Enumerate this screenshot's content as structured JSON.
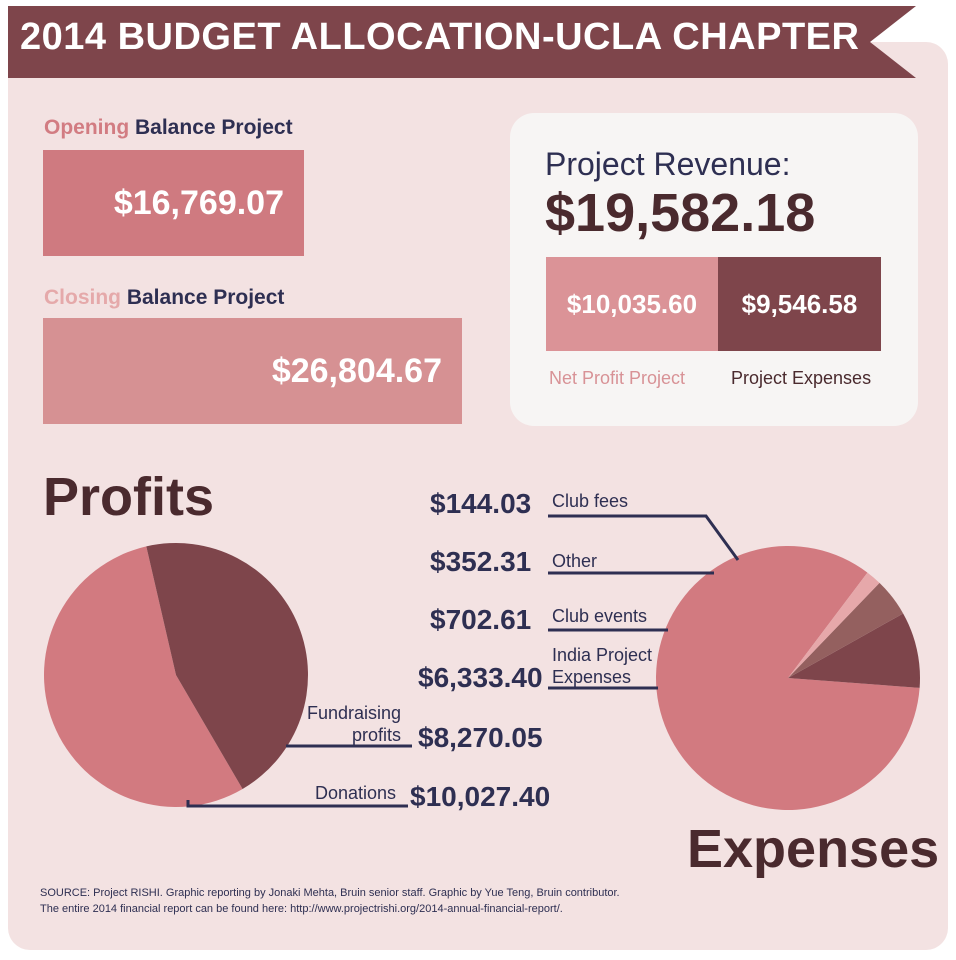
{
  "title": "2014 BUDGET ALLOCATION-UCLA CHAPTER",
  "colors": {
    "banner": "#7e454b",
    "panel": "#f3e2e2",
    "opening_box": "#cf7a80",
    "closing_box": "#d69193",
    "net_profit": "#db9397",
    "expenses_dark": "#7e454b",
    "navy": "#2e2f52",
    "dark_brown": "#4a2a2e",
    "pie_light": "#d27a80",
    "pie_dark": "#7e454b",
    "pie_mid": "#94605f",
    "pie_pale": "#e6a8aa"
  },
  "opening": {
    "label_accent": "Opening",
    "label_rest": " Balance Project",
    "value": "$16,769.07"
  },
  "closing": {
    "label_accent": "Closing",
    "label_rest": " Balance Project",
    "value": "$26,804.67"
  },
  "revenue": {
    "label": "Project Revenue:",
    "value": "$19,582.18",
    "net_profit_value": "$10,035.60",
    "expenses_value": "$9,546.58",
    "net_profit_label": "Net Profit Project",
    "expenses_label": "Project Expenses"
  },
  "profits": {
    "title": "Profits",
    "fundraising_label_1": "Fundraising",
    "fundraising_label_2": "profits",
    "fundraising_value": "$8,270.05",
    "donations_label": "Donations",
    "donations_value": "$10,027.40"
  },
  "expenses": {
    "title": "Expenses",
    "club_fees_label": "Club fees",
    "club_fees_value": "$144.03",
    "other_label": "Other",
    "other_value": "$352.31",
    "club_events_label": "Club events",
    "club_events_value": "$702.61",
    "india_label_1": "India Project",
    "india_label_2": "Expenses",
    "india_value": "$6,333.40"
  },
  "source": {
    "line1": "SOURCE: Project RISHI. Graphic reporting by Jonaki Mehta, Bruin senior staff. Graphic by Yue Teng, Bruin contributor.",
    "line2": "The entire 2014 financial report can be found here: http://www.projectrishi.org/2014-annual-financial-report/."
  },
  "chart_data": [
    {
      "type": "pie",
      "title": "Profits",
      "categories": [
        "Donations",
        "Fundraising profits"
      ],
      "values": [
        10027.4,
        8270.05
      ]
    },
    {
      "type": "pie",
      "title": "Expenses",
      "categories": [
        "India Project Expenses",
        "Club events",
        "Other",
        "Club fees"
      ],
      "values": [
        6333.4,
        702.61,
        352.31,
        144.03
      ]
    }
  ]
}
